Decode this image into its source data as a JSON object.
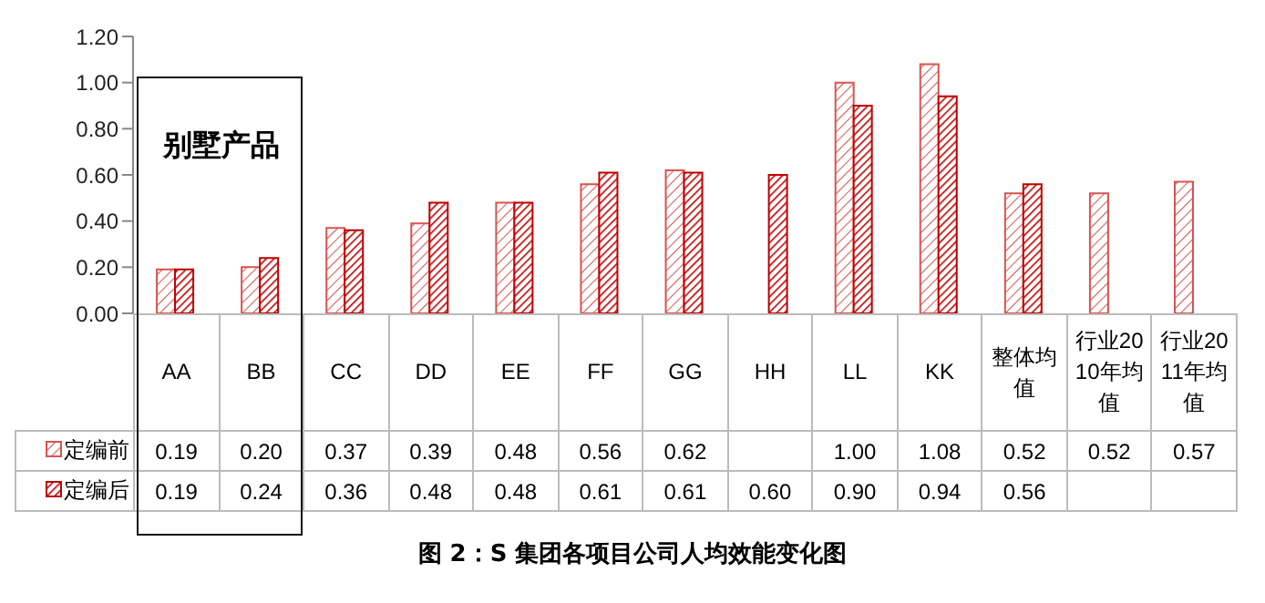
{
  "chart_data": {
    "type": "bar",
    "title": "图 2：S 集团各项目公司人均效能变化图",
    "categories": [
      "AA",
      "BB",
      "CC",
      "DD",
      "EE",
      "FF",
      "GG",
      "HH",
      "LL",
      "KK",
      "整体均值",
      "行业2010年均值",
      "行业2011年均值"
    ],
    "series": [
      {
        "name": "定编前",
        "color": "#d9534f",
        "values": [
          0.19,
          0.2,
          0.37,
          0.39,
          0.48,
          0.56,
          0.62,
          null,
          1.0,
          1.08,
          0.52,
          0.52,
          0.57
        ],
        "value_labels": [
          "0.19",
          "0.20",
          "0.37",
          "0.39",
          "0.48",
          "0.56",
          "0.62",
          null,
          "1.00",
          "1.08",
          "0.52",
          "0.52",
          "0.57"
        ]
      },
      {
        "name": "定编后",
        "color": "#c00000",
        "values": [
          0.19,
          0.24,
          0.36,
          0.48,
          0.48,
          0.61,
          0.61,
          0.6,
          0.9,
          0.94,
          0.56,
          null,
          null
        ],
        "value_labels": [
          "0.19",
          "0.24",
          "0.36",
          "0.48",
          "0.48",
          "0.61",
          "0.61",
          "0.60",
          "0.90",
          "0.94",
          "0.56",
          null,
          null
        ]
      }
    ],
    "ylim": [
      0,
      1.2
    ],
    "yticks": [
      {
        "value": 0,
        "label": "0.00"
      },
      {
        "value": 0.2,
        "label": "0.20"
      },
      {
        "value": 0.4,
        "label": "0.40"
      },
      {
        "value": 0.6,
        "label": "0.60"
      },
      {
        "value": 0.8,
        "label": "0.80"
      },
      {
        "value": 1,
        "label": "1.00"
      },
      {
        "value": 1.2,
        "label": "1.20"
      }
    ],
    "legend": "bottom left",
    "annotations": [
      "别墅产品"
    ]
  }
}
